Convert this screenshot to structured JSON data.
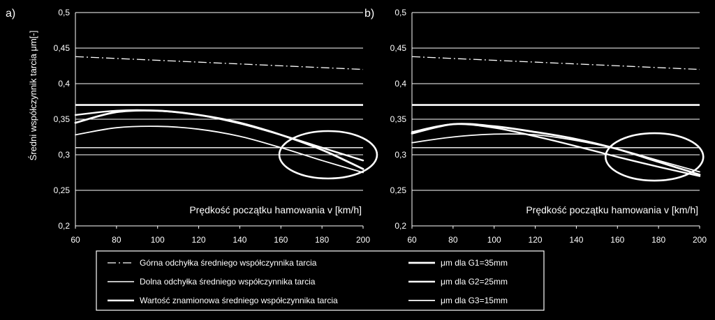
{
  "chart_data": [
    {
      "panel": "a)",
      "type": "line",
      "xlabel": "Prędkość  początku hamowania v [km/h]",
      "ylabel": "Średni współczynnik tarcia μm[-]",
      "xlim": [
        60,
        200
      ],
      "ylim": [
        0.2,
        0.5
      ],
      "x_ticks": [
        "60",
        "80",
        "100",
        "120",
        "140",
        "160",
        "180",
        "200"
      ],
      "y_ticks": [
        "0,2",
        "0,25",
        "0,3",
        "0,35",
        "0,4",
        "0,45",
        "0,5"
      ],
      "grid": true,
      "reference_lines": [
        {
          "key": "upper",
          "x": [
            60,
            200
          ],
          "y": [
            0.438,
            0.42
          ]
        },
        {
          "key": "lower",
          "x": [
            60,
            200
          ],
          "y": [
            0.31,
            0.31
          ]
        },
        {
          "key": "nominal",
          "x": [
            60,
            200
          ],
          "y": [
            0.37,
            0.37
          ]
        }
      ],
      "series": [
        {
          "key": "g1",
          "x": [
            60,
            80,
            100,
            120,
            140,
            160,
            180,
            200
          ],
          "y": [
            0.345,
            0.36,
            0.362,
            0.356,
            0.345,
            0.328,
            0.307,
            0.28
          ]
        },
        {
          "key": "g2",
          "x": [
            60,
            80,
            100,
            120,
            140,
            160,
            180,
            200
          ],
          "y": [
            0.356,
            0.362,
            0.362,
            0.356,
            0.344,
            0.328,
            0.31,
            0.292
          ]
        },
        {
          "key": "g3",
          "x": [
            60,
            80,
            100,
            120,
            140,
            160,
            180,
            200
          ],
          "y": [
            0.328,
            0.338,
            0.34,
            0.336,
            0.326,
            0.31,
            0.292,
            0.275
          ]
        }
      ],
      "annotation": {
        "shape": "ellipse",
        "center": [
          183,
          0.3
        ]
      }
    },
    {
      "panel": "b)",
      "type": "line",
      "xlabel": "Prędkość  początku hamowania v [km/h]",
      "ylabel": "",
      "xlim": [
        60,
        200
      ],
      "ylim": [
        0.2,
        0.5
      ],
      "x_ticks": [
        "60",
        "80",
        "100",
        "120",
        "140",
        "160",
        "180",
        "200"
      ],
      "y_ticks": [
        "0,2",
        "0,25",
        "0,3",
        "0,35",
        "0,4",
        "0,45",
        "0,5"
      ],
      "grid": true,
      "reference_lines": [
        {
          "key": "upper",
          "x": [
            60,
            200
          ],
          "y": [
            0.438,
            0.42
          ]
        },
        {
          "key": "lower",
          "x": [
            60,
            200
          ],
          "y": [
            0.31,
            0.31
          ]
        },
        {
          "key": "nominal",
          "x": [
            60,
            200
          ],
          "y": [
            0.37,
            0.37
          ]
        }
      ],
      "series": [
        {
          "key": "g1",
          "x": [
            60,
            80,
            100,
            120,
            140,
            160,
            180,
            200
          ],
          "y": [
            0.33,
            0.343,
            0.34,
            0.332,
            0.322,
            0.308,
            0.29,
            0.272
          ]
        },
        {
          "key": "g2",
          "x": [
            60,
            80,
            100,
            120,
            140,
            160,
            180,
            200
          ],
          "y": [
            0.332,
            0.343,
            0.338,
            0.326,
            0.312,
            0.297,
            0.283,
            0.27
          ]
        },
        {
          "key": "g3",
          "x": [
            60,
            80,
            100,
            120,
            140,
            160,
            180,
            200
          ],
          "y": [
            0.317,
            0.325,
            0.329,
            0.328,
            0.32,
            0.308,
            0.292,
            0.276
          ]
        }
      ],
      "annotation": {
        "shape": "ellipse",
        "center": [
          178,
          0.297
        ]
      }
    }
  ],
  "legend": {
    "items": [
      {
        "key": "upper",
        "label": "Górna odchyłka średniego współczynnika tarcia",
        "style": "dash-dot"
      },
      {
        "key": "g1",
        "label": "μm dla G1=35mm",
        "style": "thick"
      },
      {
        "key": "lower",
        "label": "Dolna odchyłka średniego współczynnika tarcia",
        "style": "thin"
      },
      {
        "key": "g2",
        "label": "μm dla G2=25mm",
        "style": "thick"
      },
      {
        "key": "nominal",
        "label": "Wartość znamionowa średniego współczynnika tarcia",
        "style": "thick"
      },
      {
        "key": "g3",
        "label": "μm dla G3=15mm",
        "style": "thick"
      }
    ]
  },
  "colors": {
    "background": "#000000",
    "foreground": "#ffffff"
  }
}
